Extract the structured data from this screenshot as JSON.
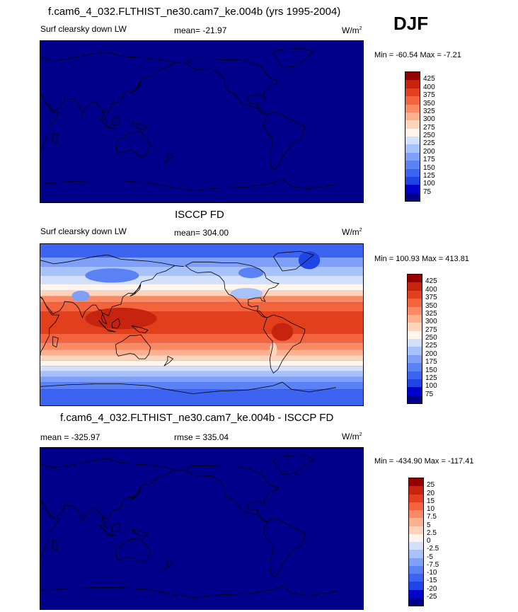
{
  "season": "DJF",
  "colors": {
    "scale": [
      "#00008b",
      "#0000cd",
      "#1e46e6",
      "#3c64f0",
      "#5a82f5",
      "#7ea0f8",
      "#a7c2fa",
      "#d2e0fc",
      "#fff5ec",
      "#fdd3ba",
      "#fcb08e",
      "#fa8a63",
      "#f2633e",
      "#e2401d",
      "#c72410",
      "#950000"
    ],
    "uniform_field": "#00008b",
    "coastline": "#000000"
  },
  "panels": [
    {
      "id": "model",
      "title": "f.cam6_4_032.FLTHIST_ne30.cam7_ke.004b (yrs 1995-2004)",
      "left_label": "Surf clearsky down LW",
      "center_label": "mean= -21.97",
      "units": "W/m",
      "units_sup": "2",
      "minmax": "Min = -60.54 Max =  -7.21",
      "colorbar_labels": [
        "425",
        "400",
        "375",
        "350",
        "325",
        "300",
        "275",
        "250",
        "225",
        "200",
        "175",
        "150",
        "125",
        "100",
        "75"
      ],
      "field": "uniform"
    },
    {
      "id": "obs",
      "title": "ISCCP FD",
      "left_label": "Surf clearsky down LW",
      "center_label": "mean= 304.00",
      "units": "W/m",
      "units_sup": "2",
      "minmax": "Min = 100.93 Max = 413.81",
      "colorbar_labels": [
        "425",
        "400",
        "375",
        "350",
        "325",
        "300",
        "275",
        "250",
        "225",
        "200",
        "175",
        "150",
        "125",
        "100",
        "75"
      ],
      "field": "zonal"
    },
    {
      "id": "diff",
      "title": "f.cam6_4_032.FLTHIST_ne30.cam7_ke.004b - ISCCP FD",
      "left_label": "mean = -325.97",
      "center_label": "rmse = 335.04",
      "units": "W/m",
      "units_sup": "2",
      "minmax": "Min = -434.90 Max = -117.41",
      "colorbar_labels": [
        "25",
        "20",
        "15",
        "10",
        "7.5",
        "5",
        "2.5",
        "0",
        "-2.5",
        "-5",
        "-7.5",
        "-10",
        "-15",
        "-20",
        "-25"
      ],
      "field": "uniform"
    }
  ]
}
